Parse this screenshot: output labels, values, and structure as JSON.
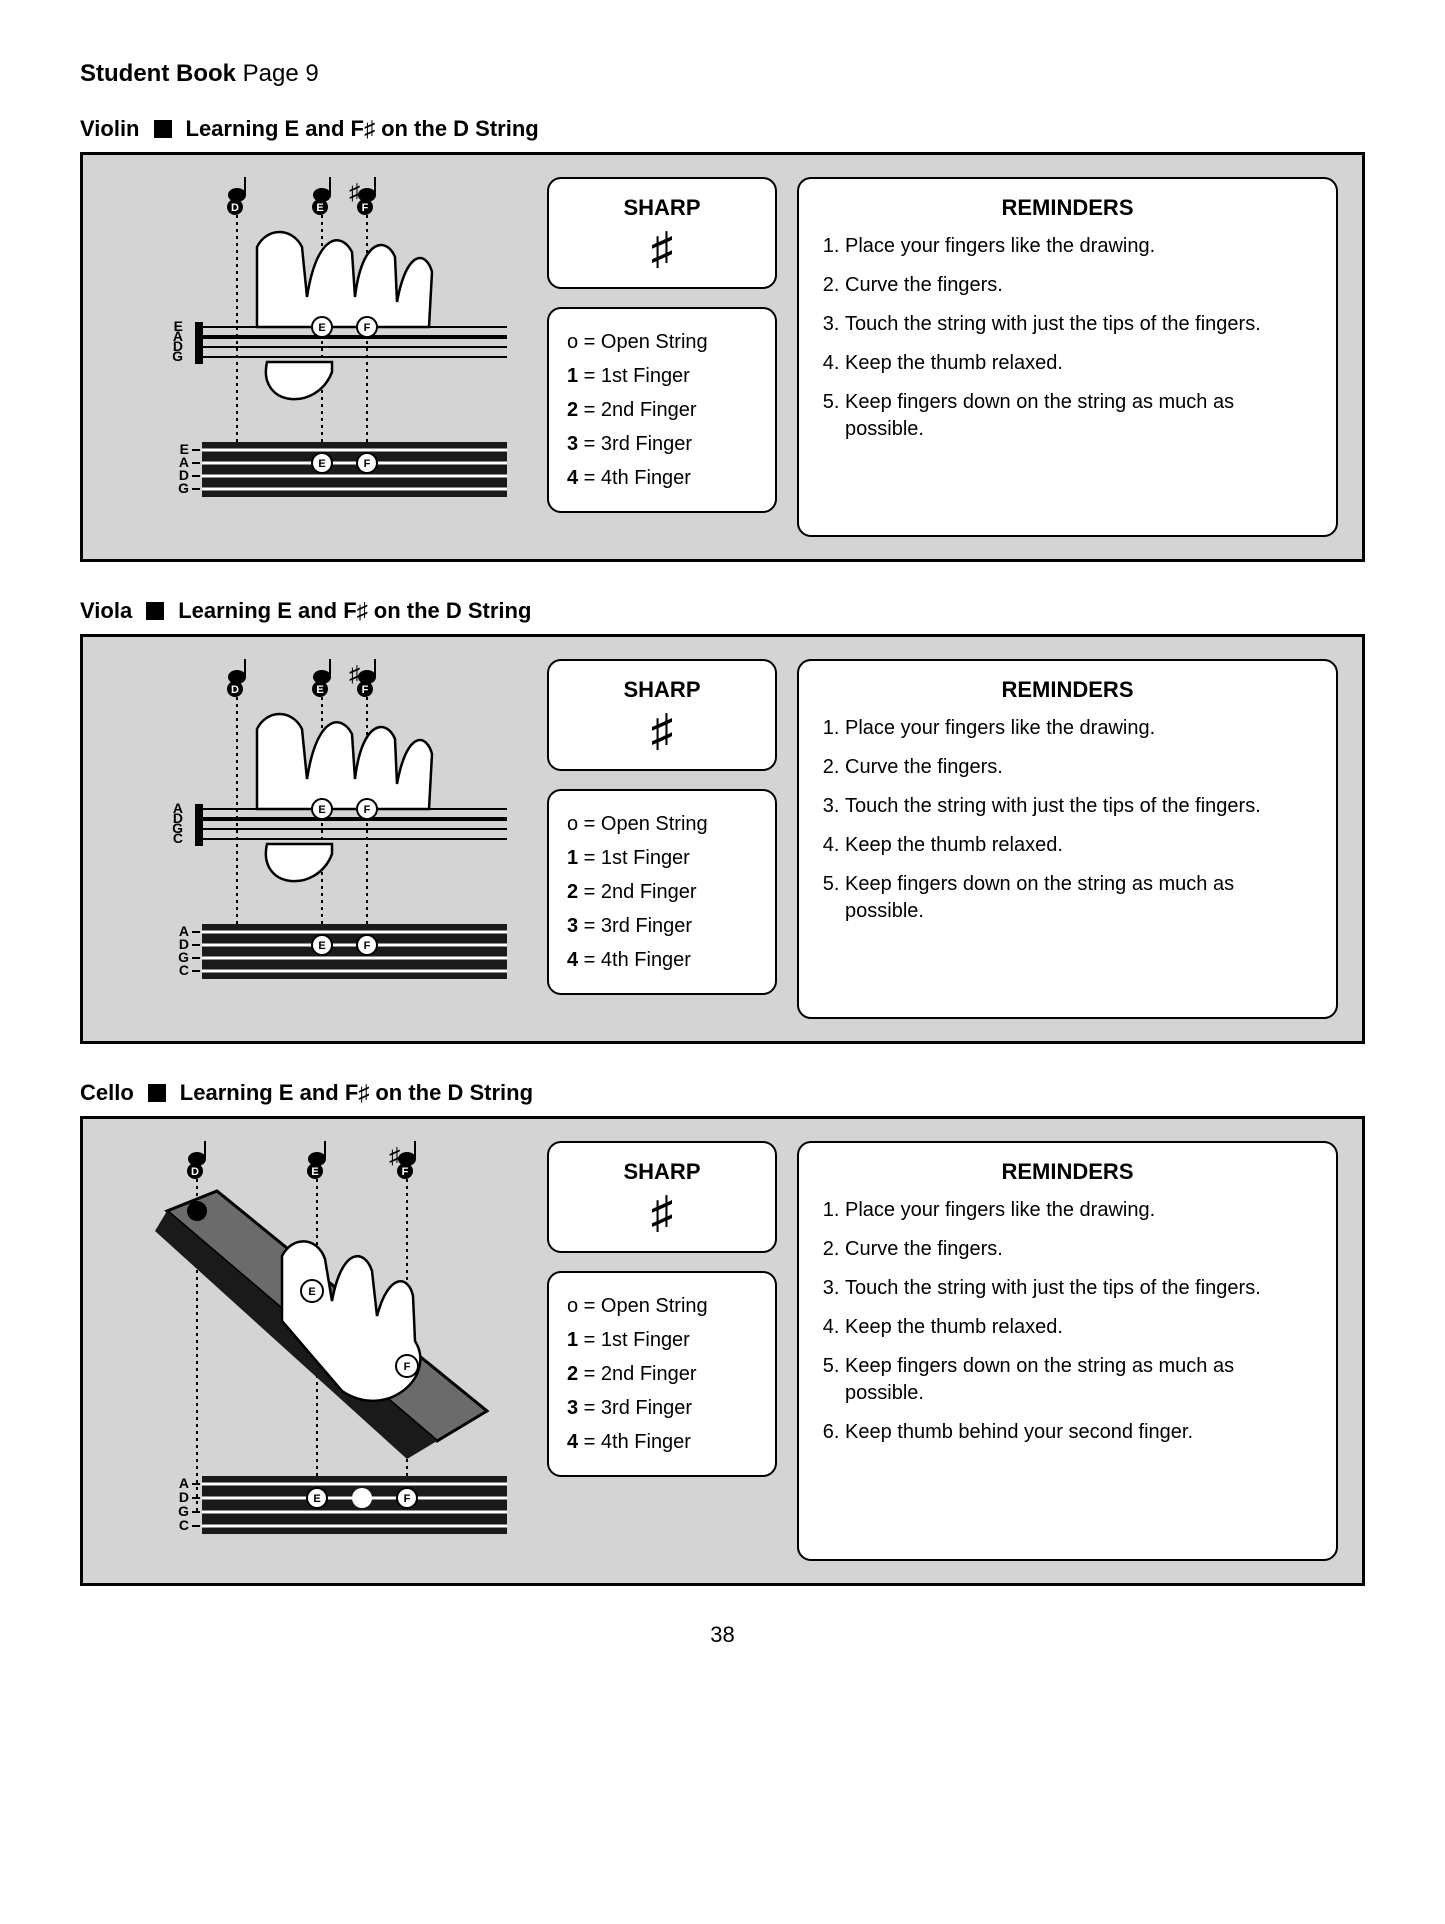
{
  "page": {
    "header_bold": "Student Book",
    "header_rest": " Page 9",
    "page_number": "38"
  },
  "sharp": {
    "title": "SHARP",
    "symbol": "♯"
  },
  "legend": {
    "rows": [
      {
        "key": "o",
        "label": "Open String"
      },
      {
        "key": "1",
        "label": "1st Finger"
      },
      {
        "key": "2",
        "label": "2nd Finger"
      },
      {
        "key": "3",
        "label": "3rd Finger"
      },
      {
        "key": "4",
        "label": "4th Finger"
      }
    ]
  },
  "reminders_title": "REMINDERS",
  "reminders_common": [
    "Place your fingers like the drawing.",
    "Curve the fingers.",
    "Touch the string with just the tips of the fingers.",
    "Keep the thumb relaxed.",
    "Keep fingers down on the string as much as possible."
  ],
  "reminders_cello_extra": "Keep thumb behind your second finger.",
  "sections": [
    {
      "instrument": "Violin",
      "title_rest": "Learning E and F♯ on the D String",
      "upper_strings": [
        "E",
        "A",
        "D",
        "G"
      ],
      "lower_strings": [
        "E",
        "A",
        "D",
        "G"
      ],
      "notes": [
        "D",
        "E",
        "F♯"
      ],
      "finger_markers": [
        "E",
        "F♯"
      ],
      "extra_reminder": false
    },
    {
      "instrument": "Viola",
      "title_rest": "Learning E and F♯ on the D String",
      "upper_strings": [
        "A",
        "D",
        "G",
        "C"
      ],
      "lower_strings": [
        "A",
        "D",
        "G",
        "C"
      ],
      "notes": [
        "D",
        "E",
        "F♯"
      ],
      "finger_markers": [
        "E",
        "F♯"
      ],
      "extra_reminder": false
    },
    {
      "instrument": "Cello",
      "title_rest": "Learning E and F♯ on the D String",
      "upper_strings": [
        "A",
        "D",
        "G",
        "C"
      ],
      "lower_strings": [
        "A",
        "D",
        "G",
        "C"
      ],
      "notes": [
        "D",
        "E",
        "F♯"
      ],
      "finger_markers": [
        "E",
        "F♯"
      ],
      "extra_reminder": true
    }
  ],
  "colors": {
    "panel_bg": "#d4d4d4",
    "panel_border": "#000000",
    "card_bg": "#ffffff",
    "card_border": "#000000",
    "text": "#000000",
    "fingerboard_fill": "#3d3d3d"
  },
  "typography": {
    "body_font": "Arial, Helvetica, sans-serif",
    "header_size_pt": 18,
    "section_title_size_pt": 17,
    "card_title_size_pt": 17,
    "list_size_pt": 15
  }
}
